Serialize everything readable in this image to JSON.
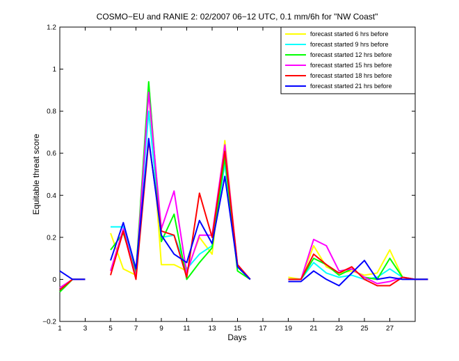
{
  "chart_data": {
    "type": "line",
    "title": "COSMO−EU and RANIE 2: 02/2007 06−12 UTC, 0.1 mm/6h for \"NW Coast\"",
    "xlabel": "Days",
    "ylabel": "Equitable threat score",
    "xlim": [
      1,
      29
    ],
    "ylim": [
      -0.2,
      1.2
    ],
    "x_ticks": [
      1,
      3,
      5,
      7,
      9,
      11,
      13,
      15,
      17,
      19,
      21,
      23,
      25,
      27
    ],
    "y_ticks": [
      -0.2,
      0,
      0.2,
      0.4,
      0.6,
      0.8,
      1,
      1.2
    ],
    "y_tick_labels": [
      "−0.2",
      "0",
      "0.2",
      "0.4",
      "0.6",
      "0.8",
      "1",
      "1.2"
    ],
    "grid": false,
    "legend_position": "top-right",
    "series": [
      {
        "name": "forecast started 6 hrs before",
        "color": "#ffff00",
        "values": [
          -0.04,
          0.0,
          0.0,
          null,
          0.22,
          0.05,
          0.02,
          0.9,
          0.07,
          0.07,
          0.04,
          0.2,
          0.12,
          0.66,
          0.06,
          0.0,
          null,
          null,
          0.01,
          0.0,
          0.16,
          0.06,
          0.03,
          0.04,
          0.02,
          0.03,
          0.14,
          0.01,
          0.0,
          0.0
        ]
      },
      {
        "name": "forecast started 9 hrs before",
        "color": "#00ffff",
        "values": [
          -0.05,
          0.0,
          0.0,
          null,
          0.25,
          0.25,
          0.04,
          0.8,
          0.2,
          0.21,
          0.05,
          0.12,
          0.16,
          0.55,
          0.06,
          0.0,
          null,
          null,
          0.0,
          0.0,
          0.08,
          0.03,
          0.01,
          0.02,
          0.0,
          0.01,
          0.05,
          0.01,
          0.0,
          0.0
        ]
      },
      {
        "name": "forecast started 12 hrs before",
        "color": "#00ff00",
        "values": [
          -0.06,
          0.0,
          0.0,
          null,
          0.14,
          0.22,
          0.03,
          0.94,
          0.18,
          0.31,
          0.0,
          0.08,
          0.15,
          0.58,
          0.04,
          0.0,
          null,
          null,
          0.0,
          0.0,
          0.1,
          0.07,
          0.02,
          0.05,
          0.01,
          0.0,
          0.1,
          0.01,
          0.0,
          0.0
        ]
      },
      {
        "name": "forecast started 15 hrs before",
        "color": "#ff00ff",
        "values": [
          -0.04,
          0.0,
          0.0,
          null,
          0.04,
          0.24,
          0.01,
          0.89,
          0.24,
          0.42,
          0.03,
          0.21,
          0.21,
          0.64,
          0.07,
          0.0,
          null,
          null,
          0.0,
          0.0,
          0.19,
          0.16,
          0.04,
          0.05,
          0.01,
          -0.02,
          -0.01,
          0.01,
          0.0,
          0.0
        ]
      },
      {
        "name": "forecast started 18 hrs before",
        "color": "#ff0000",
        "values": [
          -0.05,
          0.0,
          0.0,
          null,
          0.02,
          0.23,
          0.0,
          0.66,
          0.23,
          0.21,
          0.01,
          0.41,
          0.2,
          0.61,
          0.07,
          0.0,
          null,
          null,
          0.0,
          0.0,
          0.12,
          0.07,
          0.03,
          0.06,
          0.0,
          -0.03,
          -0.03,
          0.01,
          0.0,
          0.0
        ]
      },
      {
        "name": "forecast started 21 hrs before",
        "color": "#0000ff",
        "values": [
          0.04,
          0.0,
          0.0,
          null,
          0.09,
          0.27,
          0.05,
          0.67,
          0.21,
          0.12,
          0.08,
          0.28,
          0.17,
          0.49,
          0.06,
          0.0,
          null,
          null,
          -0.01,
          -0.01,
          0.04,
          0.0,
          -0.03,
          0.03,
          0.09,
          0.0,
          0.01,
          0.0,
          0.0,
          0.0
        ]
      }
    ]
  }
}
